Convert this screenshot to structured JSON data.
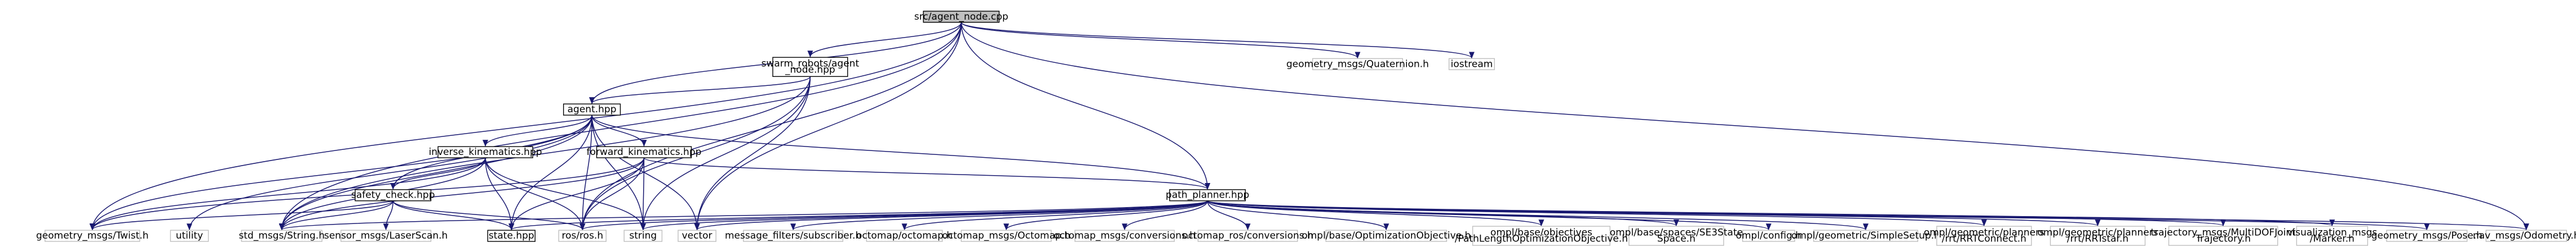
{
  "graph": {
    "nodes": [
      {
        "id": "agent_node_cpp",
        "lines": [
          "src/agent_node.cpp"
        ],
        "style": "root"
      },
      {
        "id": "swarm_node_hpp",
        "lines": [
          "swarm_robots/agent",
          "_node.hpp"
        ],
        "style": "dark"
      },
      {
        "id": "quaternion_h",
        "lines": [
          "geometry_msgs/Quaternion.h"
        ],
        "style": "light"
      },
      {
        "id": "iostream",
        "lines": [
          "iostream"
        ],
        "style": "light"
      },
      {
        "id": "agent_hpp",
        "lines": [
          "agent.hpp"
        ],
        "style": "dark"
      },
      {
        "id": "inverse_kin_hpp",
        "lines": [
          "inverse_kinematics.hpp"
        ],
        "style": "dark"
      },
      {
        "id": "forward_kin_hpp",
        "lines": [
          "forward_kinematics.hpp"
        ],
        "style": "dark"
      },
      {
        "id": "safety_check_hpp",
        "lines": [
          "safety_check.hpp"
        ],
        "style": "dark"
      },
      {
        "id": "path_planner_hpp",
        "lines": [
          "path_planner.hpp"
        ],
        "style": "dark"
      },
      {
        "id": "twist_h",
        "lines": [
          "geometry_msgs/Twist.h"
        ],
        "style": "light"
      },
      {
        "id": "utility",
        "lines": [
          "utility"
        ],
        "style": "light"
      },
      {
        "id": "std_string_h",
        "lines": [
          "std_msgs/String.h"
        ],
        "style": "light"
      },
      {
        "id": "laserscan_h",
        "lines": [
          "sensor_msgs/LaserScan.h"
        ],
        "style": "light"
      },
      {
        "id": "state_hpp",
        "lines": [
          "state.hpp"
        ],
        "style": "dark"
      },
      {
        "id": "ros_h",
        "lines": [
          "ros/ros.h"
        ],
        "style": "light"
      },
      {
        "id": "string",
        "lines": [
          "string"
        ],
        "style": "light"
      },
      {
        "id": "vector",
        "lines": [
          "vector"
        ],
        "style": "light"
      },
      {
        "id": "msg_filters_h",
        "lines": [
          "message_filters/subscriber.h"
        ],
        "style": "light"
      },
      {
        "id": "octomap_h",
        "lines": [
          "octomap/octomap.h"
        ],
        "style": "light"
      },
      {
        "id": "octomap_msgs_h",
        "lines": [
          "octomap_msgs/Octomap.h"
        ],
        "style": "light"
      },
      {
        "id": "octomap_conv_h",
        "lines": [
          "octomap_msgs/conversions.h"
        ],
        "style": "light"
      },
      {
        "id": "octomap_ros_conv_h",
        "lines": [
          "octomap_ros/conversions.h"
        ],
        "style": "light"
      },
      {
        "id": "ompl_optobj_h",
        "lines": [
          "ompl/base/OptimizationObjective.h"
        ],
        "style": "light"
      },
      {
        "id": "ompl_pathlen_h",
        "lines": [
          "ompl/base/objectives",
          "/PathLengthOptimizationObjective.h"
        ],
        "style": "light"
      },
      {
        "id": "ompl_se3_h",
        "lines": [
          "ompl/base/spaces/SE3State",
          "Space.h"
        ],
        "style": "light"
      },
      {
        "id": "ompl_config_h",
        "lines": [
          "ompl/config.h"
        ],
        "style": "light"
      },
      {
        "id": "ompl_simplesetup_h",
        "lines": [
          "ompl/geometric/SimpleSetup.h"
        ],
        "style": "light"
      },
      {
        "id": "ompl_rrtconnect_h",
        "lines": [
          "ompl/geometric/planners",
          "/rrt/RRTConnect.h"
        ],
        "style": "light"
      },
      {
        "id": "ompl_rrtstar_h",
        "lines": [
          "ompl/geometric/planners",
          "/rrt/RRTstar.h"
        ],
        "style": "light"
      },
      {
        "id": "traj_msgs_h",
        "lines": [
          "trajectory_msgs/MultiDOFJoint",
          "Trajectory.h"
        ],
        "style": "light"
      },
      {
        "id": "viz_marker_h",
        "lines": [
          "visualization_msgs",
          "/Marker.h"
        ],
        "style": "light"
      },
      {
        "id": "pose_h",
        "lines": [
          "geometry_msgs/Pose.h"
        ],
        "style": "light"
      },
      {
        "id": "odometry_h",
        "lines": [
          "nav_msgs/Odometry.h"
        ],
        "style": "light"
      }
    ],
    "edges": [
      [
        "agent_node_cpp",
        "swarm_node_hpp"
      ],
      [
        "agent_node_cpp",
        "quaternion_h"
      ],
      [
        "agent_node_cpp",
        "iostream"
      ],
      [
        "agent_node_cpp",
        "agent_hpp"
      ],
      [
        "agent_node_cpp",
        "twist_h"
      ],
      [
        "agent_node_cpp",
        "std_string_h"
      ],
      [
        "agent_node_cpp",
        "ros_h"
      ],
      [
        "agent_node_cpp",
        "vector"
      ],
      [
        "agent_node_cpp",
        "path_planner_hpp"
      ],
      [
        "agent_node_cpp",
        "odometry_h"
      ],
      [
        "swarm_node_hpp",
        "agent_hpp"
      ],
      [
        "swarm_node_hpp",
        "ros_h"
      ],
      [
        "swarm_node_hpp",
        "string"
      ],
      [
        "swarm_node_hpp",
        "vector"
      ],
      [
        "swarm_node_hpp",
        "std_string_h"
      ],
      [
        "agent_hpp",
        "inverse_kin_hpp"
      ],
      [
        "agent_hpp",
        "forward_kin_hpp"
      ],
      [
        "agent_hpp",
        "safety_check_hpp"
      ],
      [
        "agent_hpp",
        "path_planner_hpp"
      ],
      [
        "agent_hpp",
        "twist_h"
      ],
      [
        "agent_hpp",
        "utility"
      ],
      [
        "agent_hpp",
        "std_string_h"
      ],
      [
        "agent_hpp",
        "state_hpp"
      ],
      [
        "agent_hpp",
        "ros_h"
      ],
      [
        "agent_hpp",
        "string"
      ],
      [
        "agent_hpp",
        "vector"
      ],
      [
        "inverse_kin_hpp",
        "safety_check_hpp"
      ],
      [
        "inverse_kin_hpp",
        "twist_h"
      ],
      [
        "inverse_kin_hpp",
        "std_string_h"
      ],
      [
        "inverse_kin_hpp",
        "state_hpp"
      ],
      [
        "inverse_kin_hpp",
        "ros_h"
      ],
      [
        "inverse_kin_hpp",
        "string"
      ],
      [
        "forward_kin_hpp",
        "twist_h"
      ],
      [
        "forward_kin_hpp",
        "std_string_h"
      ],
      [
        "forward_kin_hpp",
        "state_hpp"
      ],
      [
        "forward_kin_hpp",
        "ros_h"
      ],
      [
        "forward_kin_hpp",
        "string"
      ],
      [
        "forward_kin_hpp",
        "path_planner_hpp"
      ],
      [
        "safety_check_hpp",
        "twist_h"
      ],
      [
        "safety_check_hpp",
        "std_string_h"
      ],
      [
        "safety_check_hpp",
        "laserscan_h"
      ],
      [
        "safety_check_hpp",
        "state_hpp"
      ],
      [
        "safety_check_hpp",
        "ros_h"
      ],
      [
        "path_planner_hpp",
        "std_string_h"
      ],
      [
        "path_planner_hpp",
        "state_hpp"
      ],
      [
        "path_planner_hpp",
        "ros_h"
      ],
      [
        "path_planner_hpp",
        "string"
      ],
      [
        "path_planner_hpp",
        "vector"
      ],
      [
        "path_planner_hpp",
        "msg_filters_h"
      ],
      [
        "path_planner_hpp",
        "octomap_h"
      ],
      [
        "path_planner_hpp",
        "octomap_msgs_h"
      ],
      [
        "path_planner_hpp",
        "octomap_conv_h"
      ],
      [
        "path_planner_hpp",
        "octomap_ros_conv_h"
      ],
      [
        "path_planner_hpp",
        "ompl_optobj_h"
      ],
      [
        "path_planner_hpp",
        "ompl_pathlen_h"
      ],
      [
        "path_planner_hpp",
        "ompl_se3_h"
      ],
      [
        "path_planner_hpp",
        "ompl_config_h"
      ],
      [
        "path_planner_hpp",
        "ompl_simplesetup_h"
      ],
      [
        "path_planner_hpp",
        "ompl_rrtconnect_h"
      ],
      [
        "path_planner_hpp",
        "ompl_rrtstar_h"
      ],
      [
        "path_planner_hpp",
        "traj_msgs_h"
      ],
      [
        "path_planner_hpp",
        "viz_marker_h"
      ],
      [
        "path_planner_hpp",
        "pose_h"
      ],
      [
        "path_planner_hpp",
        "odometry_h"
      ]
    ]
  }
}
